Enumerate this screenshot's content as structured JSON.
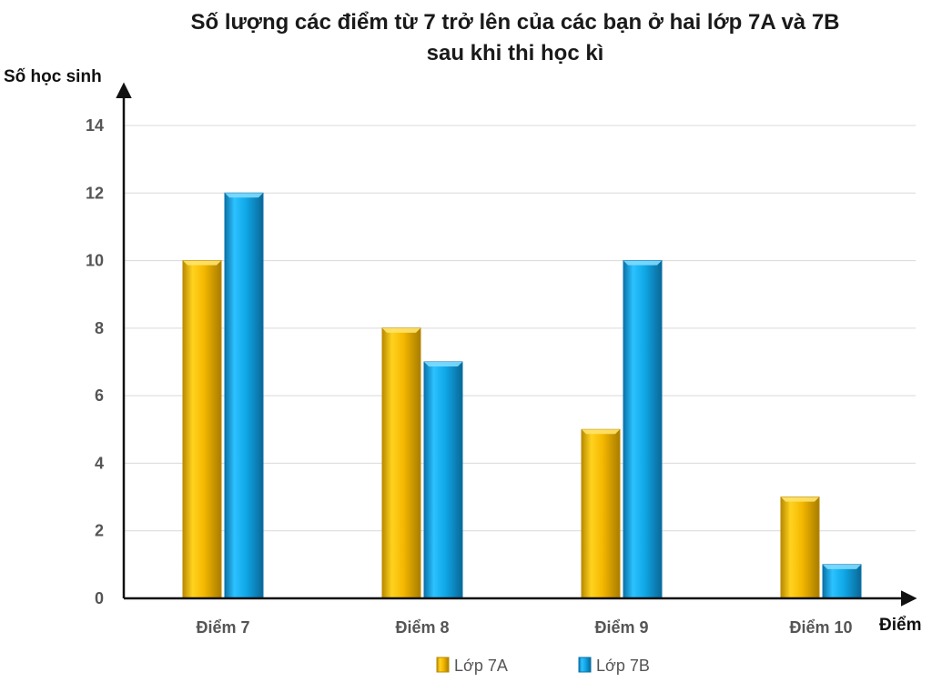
{
  "chart_data": {
    "type": "bar",
    "title": [
      "Số lượng các điểm từ 7 trở lên của các bạn ở hai lớp 7A và 7B",
      "sau khi thi học kì"
    ],
    "ylabel": "Số học sinh",
    "xlabel": "Điểm",
    "categories": [
      "Điểm 7",
      "Điểm 8",
      "Điểm 9",
      "Điểm 10"
    ],
    "yticks": [
      0,
      2,
      4,
      6,
      8,
      10,
      12,
      14
    ],
    "ylim": [
      0,
      14
    ],
    "grid": true,
    "legend_position": "bottom",
    "series": [
      {
        "name": "Lớp 7A",
        "values": [
          10,
          8,
          5,
          3
        ],
        "color": "#F5B800",
        "shade": "#B98A00",
        "light": "#FFE36B"
      },
      {
        "name": "Lớp 7B",
        "values": [
          12,
          7,
          10,
          1
        ],
        "color": "#10A8E8",
        "shade": "#0A72A8",
        "light": "#7FDBFF"
      }
    ]
  }
}
